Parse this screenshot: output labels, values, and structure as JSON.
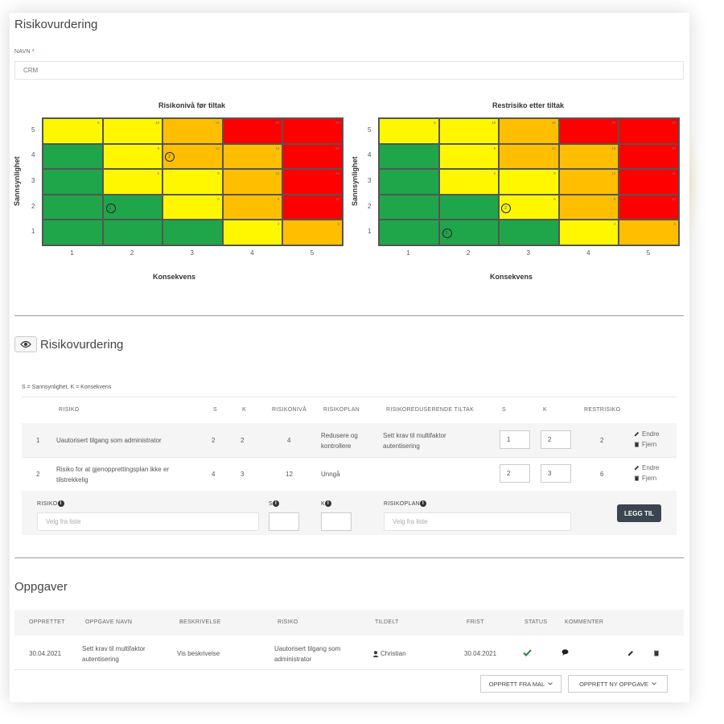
{
  "header": {
    "title": "Risikovurdering"
  },
  "name_field": {
    "label": "NAVN",
    "required_mark": "*",
    "value": "CRM"
  },
  "charts": [
    {
      "title": "Risikonivå før tiltak",
      "xlabel": "Konsekvens",
      "ylabel": "Sannsynlighet",
      "marker_numbers": [
        "1",
        "2"
      ]
    },
    {
      "title": "Restrisiko etter tiltak",
      "xlabel": "Konsekvens",
      "ylabel": "Sannsynlighet",
      "marker_numbers": [
        "1",
        "2"
      ]
    }
  ],
  "chart_data": [
    {
      "type": "heatmap",
      "title": "Risikonivå før tiltak",
      "xlabel": "Konsekvens",
      "ylabel": "Sannsynlighet",
      "x_ticks": [
        "1",
        "2",
        "3",
        "4",
        "5"
      ],
      "y_ticks": [
        "5",
        "4",
        "3",
        "2",
        "1"
      ],
      "cells": [
        [
          5,
          10,
          15,
          20,
          25
        ],
        [
          4,
          8,
          12,
          16,
          20
        ],
        [
          3,
          6,
          9,
          12,
          15
        ],
        [
          2,
          4,
          6,
          8,
          10
        ],
        [
          1,
          2,
          3,
          4,
          5
        ]
      ],
      "colors": [
        [
          "y",
          "y",
          "o",
          "r",
          "r"
        ],
        [
          "g",
          "y",
          "o",
          "o",
          "r"
        ],
        [
          "g",
          "y",
          "y",
          "o",
          "r"
        ],
        [
          "g",
          "g",
          "y",
          "o",
          "r"
        ],
        [
          "g",
          "g",
          "g",
          "y",
          "o"
        ]
      ],
      "markers": [
        {
          "label": "1",
          "s": 2,
          "k": 2
        },
        {
          "label": "2",
          "s": 4,
          "k": 3
        }
      ]
    },
    {
      "type": "heatmap",
      "title": "Restrisiko etter tiltak",
      "xlabel": "Konsekvens",
      "ylabel": "Sannsynlighet",
      "x_ticks": [
        "1",
        "2",
        "3",
        "4",
        "5"
      ],
      "y_ticks": [
        "5",
        "4",
        "3",
        "2",
        "1"
      ],
      "cells": [
        [
          5,
          10,
          15,
          20,
          25
        ],
        [
          4,
          8,
          12,
          16,
          20
        ],
        [
          3,
          6,
          9,
          12,
          15
        ],
        [
          2,
          4,
          6,
          8,
          10
        ],
        [
          1,
          2,
          3,
          4,
          5
        ]
      ],
      "colors": [
        [
          "y",
          "y",
          "o",
          "r",
          "r"
        ],
        [
          "g",
          "y",
          "o",
          "o",
          "r"
        ],
        [
          "g",
          "y",
          "y",
          "o",
          "r"
        ],
        [
          "g",
          "g",
          "y",
          "o",
          "r"
        ],
        [
          "g",
          "g",
          "g",
          "y",
          "o"
        ]
      ],
      "markers": [
        {
          "label": "1",
          "s": 1,
          "k": 2
        },
        {
          "label": "2",
          "s": 2,
          "k": 3
        }
      ]
    }
  ],
  "colors": {
    "green": "#1fa64a",
    "yellow": "#fff700",
    "orange": "#ffbf00",
    "red": "#ff0000"
  },
  "assessment": {
    "title": "Risikovurdering",
    "legend": "S = Sannsynlighet, K = Konsekvens",
    "columns": [
      "RISIKO",
      "S",
      "K",
      "RISIKONIVÅ",
      "RISIKOPLAN",
      "RISIKOREDUSERENDE TILTAK",
      "S",
      "K",
      "RESTRISIKO"
    ],
    "rows": [
      {
        "no": "1",
        "risk": "Uautorisert tilgang som administrator",
        "s": "2",
        "k": "2",
        "level": "4",
        "plan": "Redusere og kontrollere",
        "measure": "Sett krav til multifaktor autentisering",
        "rs": "1",
        "rk": "2",
        "rest": "2"
      },
      {
        "no": "2",
        "risk": "Risiko for at gjenopprettingsplan ikke er tilstrekkelig",
        "s": "4",
        "k": "3",
        "level": "12",
        "plan": "Unngå",
        "measure": "",
        "rs": "2",
        "rk": "3",
        "rest": "6"
      }
    ],
    "edit_label": "Endre",
    "remove_label": "Fjern",
    "add_form": {
      "risk_label": "RISIKO",
      "risk_placeholder": "Velg fra liste",
      "s_label": "S",
      "k_label": "K",
      "plan_label": "RISIKOPLAN",
      "plan_placeholder": "Velg fra liste",
      "add_button": "LEGG TIL"
    }
  },
  "tasks": {
    "title": "Oppgaver",
    "columns": [
      "OPPRETTET",
      "OPPGAVE NAVN",
      "BESKRIVELSE",
      "RISIKO",
      "TILDELT",
      "FRIST",
      "STATUS",
      "KOMMENTER"
    ],
    "rows": [
      {
        "created": "30.04.2021",
        "name": "Sett krav til multifaktor autentisering",
        "description": "Vis beskrivelse",
        "risk": "Uautorisert tilgang som administrator",
        "assigned": "Christian",
        "deadline": "30.04.2021"
      }
    ],
    "btn_template": "OPPRETT FRA MAL",
    "btn_new": "OPPRETT NY OPPGAVE"
  }
}
